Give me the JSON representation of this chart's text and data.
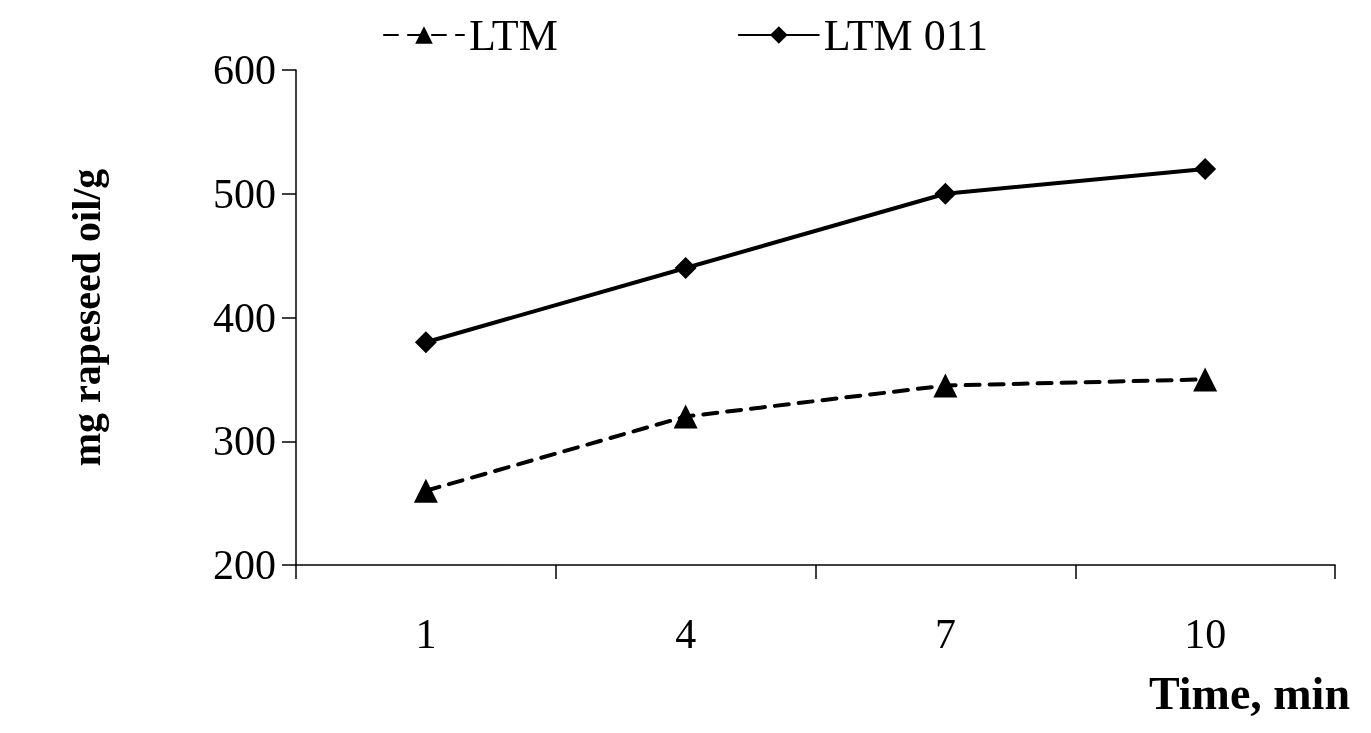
{
  "chart_data": {
    "type": "line",
    "xlabel": "Time, min",
    "ylabel": "mg rapeseed oil/g",
    "categories": [
      "1",
      "4",
      "7",
      "10"
    ],
    "series": [
      {
        "name": "LTM",
        "color": "#000000",
        "marker": "triangle",
        "line_style": "dashed",
        "values": [
          260,
          320,
          345,
          350
        ]
      },
      {
        "name": "LTM 011",
        "color": "#000000",
        "marker": "diamond",
        "line_style": "solid",
        "values": [
          380,
          440,
          500,
          520
        ]
      }
    ],
    "ylim": [
      200,
      600
    ],
    "yticks": [
      200,
      300,
      400,
      500,
      600
    ],
    "grid": false,
    "legend": "top"
  }
}
